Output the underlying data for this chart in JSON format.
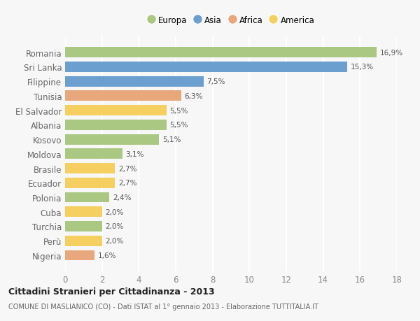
{
  "countries": [
    "Romania",
    "Sri Lanka",
    "Filippine",
    "Tunisia",
    "El Salvador",
    "Albania",
    "Kosovo",
    "Moldova",
    "Brasile",
    "Ecuador",
    "Polonia",
    "Cuba",
    "Turchia",
    "Perù",
    "Nigeria"
  ],
  "values": [
    16.9,
    15.3,
    7.5,
    6.3,
    5.5,
    5.5,
    5.1,
    3.1,
    2.7,
    2.7,
    2.4,
    2.0,
    2.0,
    2.0,
    1.6
  ],
  "continents": [
    "Europa",
    "Asia",
    "Asia",
    "Africa",
    "America",
    "Europa",
    "Europa",
    "Europa",
    "America",
    "America",
    "Europa",
    "America",
    "Europa",
    "America",
    "Africa"
  ],
  "colors": {
    "Europa": "#aac882",
    "Asia": "#6b9fcf",
    "Africa": "#e8a87c",
    "America": "#f5d060"
  },
  "legend_order": [
    "Europa",
    "Asia",
    "Africa",
    "America"
  ],
  "xlim": [
    0,
    18
  ],
  "xticks": [
    0,
    2,
    4,
    6,
    8,
    10,
    12,
    14,
    16,
    18
  ],
  "title": "Cittadini Stranieri per Cittadinanza - 2013",
  "subtitle": "COMUNE DI MASLIANICO (CO) - Dati ISTAT al 1° gennaio 2013 - Elaborazione TUTTITALIA.IT",
  "bg_color": "#f7f7f7",
  "grid_color": "#ffffff",
  "bar_height": 0.72
}
